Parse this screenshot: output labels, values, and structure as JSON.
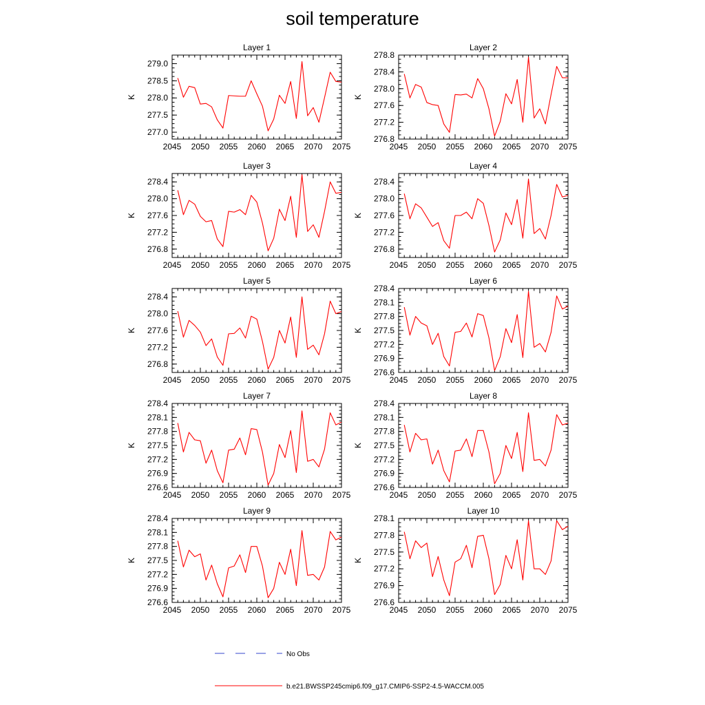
{
  "title": "soil temperature",
  "legend": {
    "obs_label": "No Obs",
    "obs_color": "#3344cc",
    "model_label": "b.e21.BWSSP245cmip6.f09_g17.CMIP6-SSP2-4.5-WACCM.005",
    "model_color": "#ff0000"
  },
  "chart_data": [
    {
      "type": "line",
      "title": "Layer 1",
      "ylabel": "K",
      "xlim": [
        2045,
        2075
      ],
      "ylim": [
        276.8,
        279.25
      ],
      "yticks": [
        "277.0",
        "277.5",
        "278.0",
        "278.5",
        "279.0"
      ],
      "xticks": [
        "2045",
        "2050",
        "2055",
        "2060",
        "2065",
        "2070",
        "2075"
      ],
      "x": [
        2046,
        2047,
        2048,
        2049,
        2050,
        2051,
        2052,
        2053,
        2054,
        2055,
        2056,
        2057,
        2058,
        2059,
        2060,
        2061,
        2062,
        2063,
        2064,
        2065,
        2066,
        2067,
        2068,
        2069,
        2070,
        2071,
        2072,
        2073,
        2074,
        2075
      ],
      "series": [
        {
          "values": [
            278.58,
            278.02,
            278.34,
            278.3,
            277.82,
            277.84,
            277.74,
            277.36,
            277.12,
            278.07,
            278.06,
            278.05,
            278.05,
            278.5,
            278.12,
            277.76,
            277.04,
            277.38,
            278.08,
            277.84,
            278.48,
            277.4,
            279.06,
            277.48,
            277.72,
            277.29,
            278.01,
            278.75,
            278.48,
            278.46
          ]
        }
      ]
    },
    {
      "type": "line",
      "title": "Layer 2",
      "ylabel": "K",
      "xlim": [
        2045,
        2075
      ],
      "ylim": [
        276.8,
        278.8
      ],
      "yticks": [
        "276.8",
        "277.2",
        "277.6",
        "278.0",
        "278.4",
        "278.8"
      ],
      "xticks": [
        "2045",
        "2050",
        "2055",
        "2060",
        "2065",
        "2070",
        "2075"
      ],
      "x": [
        2046,
        2047,
        2048,
        2049,
        2050,
        2051,
        2052,
        2053,
        2054,
        2055,
        2056,
        2057,
        2058,
        2059,
        2060,
        2061,
        2062,
        2063,
        2064,
        2065,
        2066,
        2067,
        2068,
        2069,
        2070,
        2071,
        2072,
        2073,
        2074,
        2075
      ],
      "series": [
        {
          "values": [
            278.35,
            277.78,
            278.1,
            278.04,
            277.67,
            277.62,
            277.6,
            277.16,
            276.96,
            277.86,
            277.85,
            277.87,
            277.78,
            278.24,
            278.0,
            277.52,
            276.87,
            277.22,
            277.88,
            277.64,
            278.22,
            277.2,
            278.75,
            277.3,
            277.52,
            277.16,
            277.86,
            278.53,
            278.26,
            278.26
          ]
        }
      ]
    },
    {
      "type": "line",
      "title": "Layer 3",
      "ylabel": "K",
      "xlim": [
        2045,
        2075
      ],
      "ylim": [
        276.6,
        278.6
      ],
      "yticks": [
        "276.8",
        "277.2",
        "277.6",
        "278.0",
        "278.4"
      ],
      "xticks": [
        "2045",
        "2050",
        "2055",
        "2060",
        "2065",
        "2070",
        "2075"
      ],
      "x": [
        2046,
        2047,
        2048,
        2049,
        2050,
        2051,
        2052,
        2053,
        2054,
        2055,
        2056,
        2057,
        2058,
        2059,
        2060,
        2061,
        2062,
        2063,
        2064,
        2065,
        2066,
        2067,
        2068,
        2069,
        2070,
        2071,
        2072,
        2073,
        2074,
        2075
      ],
      "series": [
        {
          "values": [
            278.2,
            277.62,
            277.96,
            277.87,
            277.58,
            277.45,
            277.48,
            277.04,
            276.86,
            277.7,
            277.68,
            277.74,
            277.62,
            278.08,
            277.92,
            277.42,
            276.76,
            277.06,
            277.75,
            277.48,
            278.06,
            277.08,
            278.57,
            277.22,
            277.38,
            277.08,
            277.7,
            278.4,
            278.13,
            278.15
          ]
        }
      ]
    },
    {
      "type": "line",
      "title": "Layer 4",
      "ylabel": "K",
      "xlim": [
        2045,
        2075
      ],
      "ylim": [
        276.6,
        278.6
      ],
      "yticks": [
        "276.8",
        "277.2",
        "277.6",
        "278.0",
        "278.4"
      ],
      "xticks": [
        "2045",
        "2050",
        "2055",
        "2060",
        "2065",
        "2070",
        "2075"
      ],
      "x": [
        2046,
        2047,
        2048,
        2049,
        2050,
        2051,
        2052,
        2053,
        2054,
        2055,
        2056,
        2057,
        2058,
        2059,
        2060,
        2061,
        2062,
        2063,
        2064,
        2065,
        2066,
        2067,
        2068,
        2069,
        2070,
        2071,
        2072,
        2073,
        2074,
        2075
      ],
      "series": [
        {
          "values": [
            278.12,
            277.52,
            277.88,
            277.78,
            277.56,
            277.34,
            277.43,
            277.0,
            276.82,
            277.6,
            277.6,
            277.68,
            277.52,
            278.0,
            277.89,
            277.36,
            276.73,
            277.02,
            277.66,
            277.38,
            277.98,
            277.06,
            278.47,
            277.17,
            277.29,
            277.04,
            277.6,
            278.34,
            278.04,
            278.08
          ]
        }
      ]
    },
    {
      "type": "line",
      "title": "Layer 5",
      "ylabel": "K",
      "xlim": [
        2045,
        2075
      ],
      "ylim": [
        276.6,
        278.6
      ],
      "yticks": [
        "276.8",
        "277.2",
        "277.6",
        "278.0",
        "278.4"
      ],
      "xticks": [
        "2045",
        "2050",
        "2055",
        "2060",
        "2065",
        "2070",
        "2075"
      ],
      "x": [
        2046,
        2047,
        2048,
        2049,
        2050,
        2051,
        2052,
        2053,
        2054,
        2055,
        2056,
        2057,
        2058,
        2059,
        2060,
        2061,
        2062,
        2063,
        2064,
        2065,
        2066,
        2067,
        2068,
        2069,
        2070,
        2071,
        2072,
        2073,
        2074,
        2075
      ],
      "series": [
        {
          "values": [
            278.06,
            277.44,
            277.84,
            277.72,
            277.56,
            277.24,
            277.4,
            276.97,
            276.77,
            277.52,
            277.53,
            277.66,
            277.42,
            277.94,
            277.87,
            277.34,
            276.68,
            276.96,
            277.6,
            277.3,
            277.92,
            276.96,
            278.4,
            277.15,
            277.25,
            277.02,
            277.52,
            278.3,
            278.0,
            278.05
          ]
        }
      ]
    },
    {
      "type": "line",
      "title": "Layer 6",
      "ylabel": "K",
      "xlim": [
        2045,
        2075
      ],
      "ylim": [
        276.6,
        278.4
      ],
      "yticks": [
        "276.6",
        "276.9",
        "277.2",
        "277.5",
        "277.8",
        "278.1",
        "278.4"
      ],
      "xticks": [
        "2045",
        "2050",
        "2055",
        "2060",
        "2065",
        "2070",
        "2075"
      ],
      "x": [
        2046,
        2047,
        2048,
        2049,
        2050,
        2051,
        2052,
        2053,
        2054,
        2055,
        2056,
        2057,
        2058,
        2059,
        2060,
        2061,
        2062,
        2063,
        2064,
        2065,
        2066,
        2067,
        2068,
        2069,
        2070,
        2071,
        2072,
        2073,
        2074,
        2075
      ],
      "series": [
        {
          "values": [
            278.0,
            277.4,
            277.8,
            277.66,
            277.6,
            277.2,
            277.44,
            276.94,
            276.74,
            277.46,
            277.48,
            277.66,
            277.36,
            277.86,
            277.82,
            277.34,
            276.64,
            276.94,
            277.54,
            277.24,
            277.84,
            276.92,
            278.34,
            277.14,
            277.22,
            277.04,
            277.46,
            278.24,
            277.96,
            278.02
          ]
        }
      ]
    },
    {
      "type": "line",
      "title": "Layer 7",
      "ylabel": "K",
      "xlim": [
        2045,
        2075
      ],
      "ylim": [
        276.6,
        278.4
      ],
      "yticks": [
        "276.6",
        "276.9",
        "277.2",
        "277.5",
        "277.8",
        "278.1",
        "278.4"
      ],
      "xticks": [
        "2045",
        "2050",
        "2055",
        "2060",
        "2065",
        "2070",
        "2075"
      ],
      "x": [
        2046,
        2047,
        2048,
        2049,
        2050,
        2051,
        2052,
        2053,
        2054,
        2055,
        2056,
        2057,
        2058,
        2059,
        2060,
        2061,
        2062,
        2063,
        2064,
        2065,
        2066,
        2067,
        2068,
        2069,
        2070,
        2071,
        2072,
        2073,
        2074,
        2075
      ],
      "series": [
        {
          "values": [
            277.98,
            277.36,
            277.78,
            277.62,
            277.6,
            277.12,
            277.4,
            276.96,
            276.7,
            277.4,
            277.42,
            277.66,
            277.3,
            277.86,
            277.84,
            277.36,
            276.65,
            276.9,
            277.52,
            277.24,
            277.82,
            276.92,
            278.24,
            277.16,
            277.2,
            277.04,
            277.42,
            278.2,
            277.94,
            278.0
          ]
        }
      ]
    },
    {
      "type": "line",
      "title": "Layer 8",
      "ylabel": "K",
      "xlim": [
        2045,
        2075
      ],
      "ylim": [
        276.6,
        278.4
      ],
      "yticks": [
        "276.6",
        "276.9",
        "277.2",
        "277.5",
        "277.8",
        "278.1",
        "278.4"
      ],
      "xticks": [
        "2045",
        "2050",
        "2055",
        "2060",
        "2065",
        "2070",
        "2075"
      ],
      "x": [
        2046,
        2047,
        2048,
        2049,
        2050,
        2051,
        2052,
        2053,
        2054,
        2055,
        2056,
        2057,
        2058,
        2059,
        2060,
        2061,
        2062,
        2063,
        2064,
        2065,
        2066,
        2067,
        2068,
        2069,
        2070,
        2071,
        2072,
        2073,
        2074,
        2075
      ],
      "series": [
        {
          "values": [
            277.94,
            277.36,
            277.76,
            277.62,
            277.64,
            277.1,
            277.4,
            276.96,
            276.72,
            277.38,
            277.4,
            277.64,
            277.26,
            277.82,
            277.82,
            277.36,
            276.68,
            276.9,
            277.5,
            277.22,
            277.78,
            276.94,
            278.2,
            277.18,
            277.2,
            277.06,
            277.4,
            278.16,
            277.94,
            277.98
          ]
        }
      ]
    },
    {
      "type": "line",
      "title": "Layer 9",
      "ylabel": "K",
      "xlim": [
        2045,
        2075
      ],
      "ylim": [
        276.6,
        278.4
      ],
      "yticks": [
        "276.6",
        "276.9",
        "277.2",
        "277.5",
        "277.8",
        "278.1",
        "278.4"
      ],
      "xticks": [
        "2045",
        "2050",
        "2055",
        "2060",
        "2065",
        "2070",
        "2075"
      ],
      "x": [
        2046,
        2047,
        2048,
        2049,
        2050,
        2051,
        2052,
        2053,
        2054,
        2055,
        2056,
        2057,
        2058,
        2059,
        2060,
        2061,
        2062,
        2063,
        2064,
        2065,
        2066,
        2067,
        2068,
        2069,
        2070,
        2071,
        2072,
        2073,
        2074,
        2075
      ],
      "series": [
        {
          "values": [
            277.92,
            277.36,
            277.72,
            277.58,
            277.64,
            277.08,
            277.4,
            277.0,
            276.72,
            277.34,
            277.38,
            277.62,
            277.24,
            277.8,
            277.8,
            277.38,
            276.7,
            276.9,
            277.46,
            277.2,
            277.74,
            276.96,
            278.14,
            277.18,
            277.2,
            277.08,
            277.36,
            278.12,
            277.94,
            278.0
          ]
        }
      ]
    },
    {
      "type": "line",
      "title": "Layer 10",
      "ylabel": "K",
      "xlim": [
        2045,
        2075
      ],
      "ylim": [
        276.6,
        278.1
      ],
      "yticks": [
        "276.6",
        "276.9",
        "277.2",
        "277.5",
        "277.8",
        "278.1"
      ],
      "xticks": [
        "2045",
        "2050",
        "2055",
        "2060",
        "2065",
        "2070",
        "2075"
      ],
      "x": [
        2046,
        2047,
        2048,
        2049,
        2050,
        2051,
        2052,
        2053,
        2054,
        2055,
        2056,
        2057,
        2058,
        2059,
        2060,
        2061,
        2062,
        2063,
        2064,
        2065,
        2066,
        2067,
        2068,
        2069,
        2070,
        2071,
        2072,
        2073,
        2074,
        2075
      ],
      "series": [
        {
          "values": [
            277.86,
            277.38,
            277.7,
            277.58,
            277.66,
            277.06,
            277.42,
            277.0,
            276.72,
            277.32,
            277.38,
            277.62,
            277.22,
            277.78,
            277.8,
            277.38,
            276.74,
            276.92,
            277.44,
            277.2,
            277.72,
            277.0,
            278.06,
            277.2,
            277.2,
            277.1,
            277.34,
            278.06,
            277.9,
            277.96
          ]
        }
      ]
    }
  ]
}
